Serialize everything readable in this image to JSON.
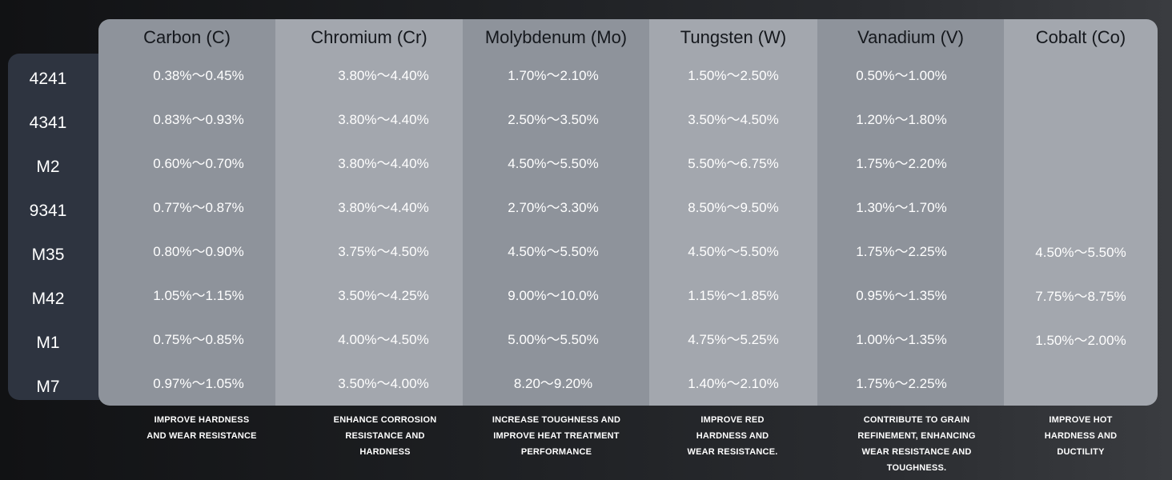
{
  "grades": [
    "4241",
    "4341",
    "M2",
    "9341",
    "M35",
    "M42",
    "M1",
    "M7"
  ],
  "columns": [
    {
      "header": "Carbon (C)",
      "color": "#8e939b",
      "values": [
        "0.38%～0.45%",
        "0.83%～0.93%",
        "0.60%～0.70%",
        "0.77%～0.87%",
        "0.80%～0.90%",
        "1.05%～1.15%",
        "0.75%～0.85%",
        "0.97%～1.05%"
      ],
      "note": "IMPROVE HARDNESS\nAND WEAR RESISTANCE"
    },
    {
      "header": "Chromium (Cr)",
      "color": "#a3a7ae",
      "values": [
        "3.80%～4.40%",
        "3.80%～4.40%",
        "3.80%～4.40%",
        "3.80%～4.40%",
        "3.75%～4.50%",
        "3.50%～4.25%",
        "4.00%～4.50%",
        "3.50%～4.00%"
      ],
      "note": "ENHANCE CORROSION\nRESISTANCE AND\nHARDNESS"
    },
    {
      "header": "Molybdenum (Mo)",
      "color": "#8e939b",
      "values": [
        "1.70%～2.10%",
        "2.50%～3.50%",
        "4.50%～5.50%",
        "2.70%～3.30%",
        "4.50%～5.50%",
        "9.00%～10.0%",
        "5.00%～5.50%",
        "8.20～9.20%"
      ],
      "note": "INCREASE TOUGHNESS AND\nIMPROVE HEAT TREATMENT\nPERFORMANCE"
    },
    {
      "header": "Tungsten (W)",
      "color": "#a3a7ae",
      "values": [
        "1.50%～2.50%",
        "3.50%～4.50%",
        "5.50%～6.75%",
        "8.50%～9.50%",
        "4.50%～5.50%",
        "1.15%～1.85%",
        "4.75%～5.25%",
        "1.40%～2.10%"
      ],
      "note": "IMPROVE RED\nHARDNESS AND\nWEAR RESISTANCE."
    },
    {
      "header": "Vanadium (V)",
      "color": "#8e939b",
      "values": [
        "0.50%～1.00%",
        "1.20%～1.80%",
        "1.75%～2.20%",
        "1.30%～1.70%",
        "1.75%～2.25%",
        "0.95%～1.35%",
        "1.00%～1.35%",
        "1.75%～2.25%"
      ],
      "note": "CONTRIBUTE TO GRAIN\nREFINEMENT, ENHANCING\nWEAR RESISTANCE AND\nTOUGHNESS."
    },
    {
      "header": "Cobalt (Co)",
      "color": "#a3a7ae",
      "values": [
        "",
        "",
        "",
        "",
        "4.50%～5.50%",
        "7.75%～8.75%",
        "1.50%～2.00%",
        ""
      ],
      "note": "IMPROVE HOT\nHARDNESS AND\nDUCTILITY"
    }
  ]
}
